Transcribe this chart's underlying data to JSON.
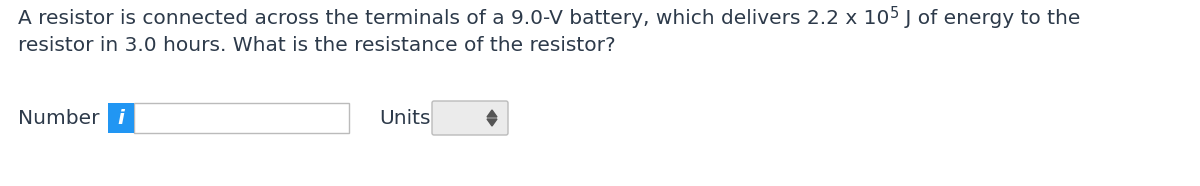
{
  "line1_part1": "A resistor is connected across the terminals of a 9.0-V battery, which delivers 2.2 x 10",
  "superscript": "5",
  "line1_part2": " J of energy to the",
  "line2": "resistor in 3.0 hours. What is the resistance of the resistor?",
  "number_label": "Number",
  "units_label": "Units",
  "bg_color": "#ffffff",
  "text_color": "#2d3a4a",
  "font_size": 14.5,
  "sup_font_size": 10.5,
  "input_box_color": "#ffffff",
  "input_box_border": "#bbbbbb",
  "info_box_color": "#2196f3",
  "info_text_color": "#ffffff",
  "dropdown_box_color": "#ebebeb",
  "dropdown_border": "#bbbbbb",
  "arrow_color": "#555555"
}
